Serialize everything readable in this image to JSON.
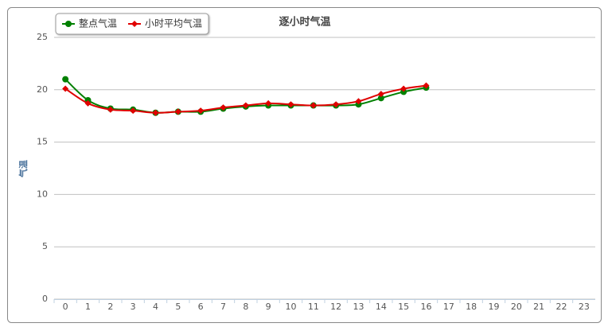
{
  "chart_data": {
    "type": "line",
    "title": "逐小时气温",
    "y_label": "气温",
    "categories": [
      "0",
      "1",
      "2",
      "3",
      "4",
      "5",
      "6",
      "7",
      "8",
      "9",
      "10",
      "11",
      "12",
      "13",
      "14",
      "15",
      "16",
      "17",
      "18",
      "19",
      "20",
      "21",
      "22",
      "23"
    ],
    "series": [
      {
        "name": "整点气温",
        "color": "#008000",
        "marker": "circle",
        "values": [
          21.0,
          19.0,
          18.2,
          18.1,
          17.8,
          17.9,
          17.9,
          18.2,
          18.4,
          18.5,
          18.5,
          18.5,
          18.5,
          18.6,
          19.2,
          19.8,
          20.2,
          null,
          null,
          null,
          null,
          null,
          null,
          null
        ]
      },
      {
        "name": "小时平均气温",
        "color": "#e00000",
        "marker": "diamond",
        "values": [
          20.1,
          18.7,
          18.1,
          18.0,
          17.8,
          17.9,
          18.0,
          18.3,
          18.5,
          18.7,
          18.6,
          18.5,
          18.6,
          18.9,
          19.6,
          20.1,
          20.4,
          null,
          null,
          null,
          null,
          null,
          null,
          null
        ]
      }
    ],
    "ylim": [
      0,
      25
    ],
    "yticks": [
      0,
      5,
      10,
      15,
      20,
      25
    ],
    "grid": true,
    "legend": "top-left"
  }
}
